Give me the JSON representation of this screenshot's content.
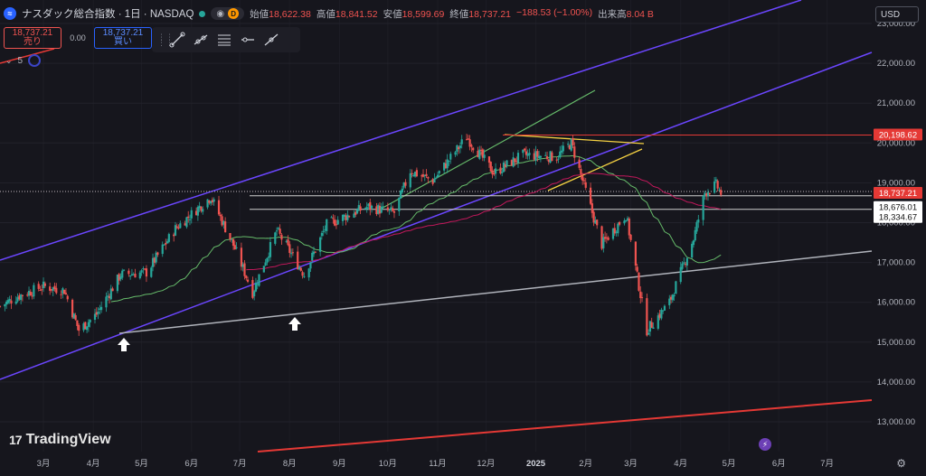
{
  "header": {
    "title": "ナスダック総合指数 · 1日 · NASDAQ",
    "pill_label": "D",
    "ohlc": [
      {
        "key": "始値",
        "value": "18,622.38"
      },
      {
        "key": "高値",
        "value": "18,841.52"
      },
      {
        "key": "安値",
        "value": "18,599.69"
      },
      {
        "key": "終値",
        "value": "18,737.21"
      },
      {
        "key": "",
        "value": "−188.53 (−1.00%)"
      },
      {
        "key": "出来高",
        "value": "8.04 B"
      }
    ]
  },
  "trade": {
    "sell_price": "18,737.21",
    "sell_label": "売り",
    "spread": "0.00",
    "buy_price": "18,737.21",
    "buy_label": "買い"
  },
  "indicators": {
    "count": "5"
  },
  "currency": "USD",
  "watermark": "TradingView",
  "colors": {
    "up": "#26a69a",
    "down": "#ef5350",
    "channel": "#6b46ff",
    "red_line": "#e53935",
    "ma_green": "#66bb6a",
    "ma_pink": "#c2185b",
    "support": "#b0b3bb",
    "triangle": "#f5d142",
    "tag_red": "#e53935"
  },
  "price_scale": {
    "ticks": [
      "23,000.00",
      "22,000.00",
      "21,000.00",
      "20,000.00",
      "19,000.00",
      "18,000.00",
      "17,000.00",
      "16,000.00",
      "15,000.00",
      "14,000.00",
      "13,000.00"
    ],
    "tags": [
      {
        "value": "20,198.62",
        "style": "red"
      },
      {
        "value": "18,737.21",
        "style": "red"
      },
      {
        "value": "18,676.01",
        "style": "white"
      },
      {
        "value": "18,334.67",
        "style": "white"
      }
    ]
  },
  "time_axis": {
    "labels": [
      "3月",
      "4月",
      "5月",
      "6月",
      "7月",
      "8月",
      "9月",
      "10月",
      "11月",
      "12月",
      "2025",
      "2月",
      "3月",
      "4月",
      "5月",
      "6月",
      "7月"
    ]
  },
  "chart_data": {
    "type": "candlestick",
    "x_start": "2024-03-01",
    "x_end": "2025-07-31",
    "ylim": [
      12800,
      23100
    ],
    "log_scale": false,
    "grid": true,
    "key_points": [
      {
        "date": "2024-04-19",
        "close": 15282,
        "note": "arrow low"
      },
      {
        "date": "2024-07-10",
        "close": 18647,
        "note": "July high"
      },
      {
        "date": "2024-08-05",
        "close": 16200,
        "note": "arrow low"
      },
      {
        "date": "2024-12-16",
        "close": 20174,
        "note": "Dec high"
      },
      {
        "date": "2025-04-07",
        "close": 15267,
        "note": "April low"
      },
      {
        "date": "2025-05-23",
        "close": 18737.21,
        "note": "last"
      }
    ],
    "horizontal_levels": [
      20198.62,
      18737.21,
      18676.01,
      18334.67
    ],
    "annotations": [
      "up-arrow near 2024-04",
      "up-arrow near 2024-08",
      "ascending channel (purple)",
      "support trendline (gray)",
      "triangle (yellow)",
      "trend line (green)"
    ]
  }
}
